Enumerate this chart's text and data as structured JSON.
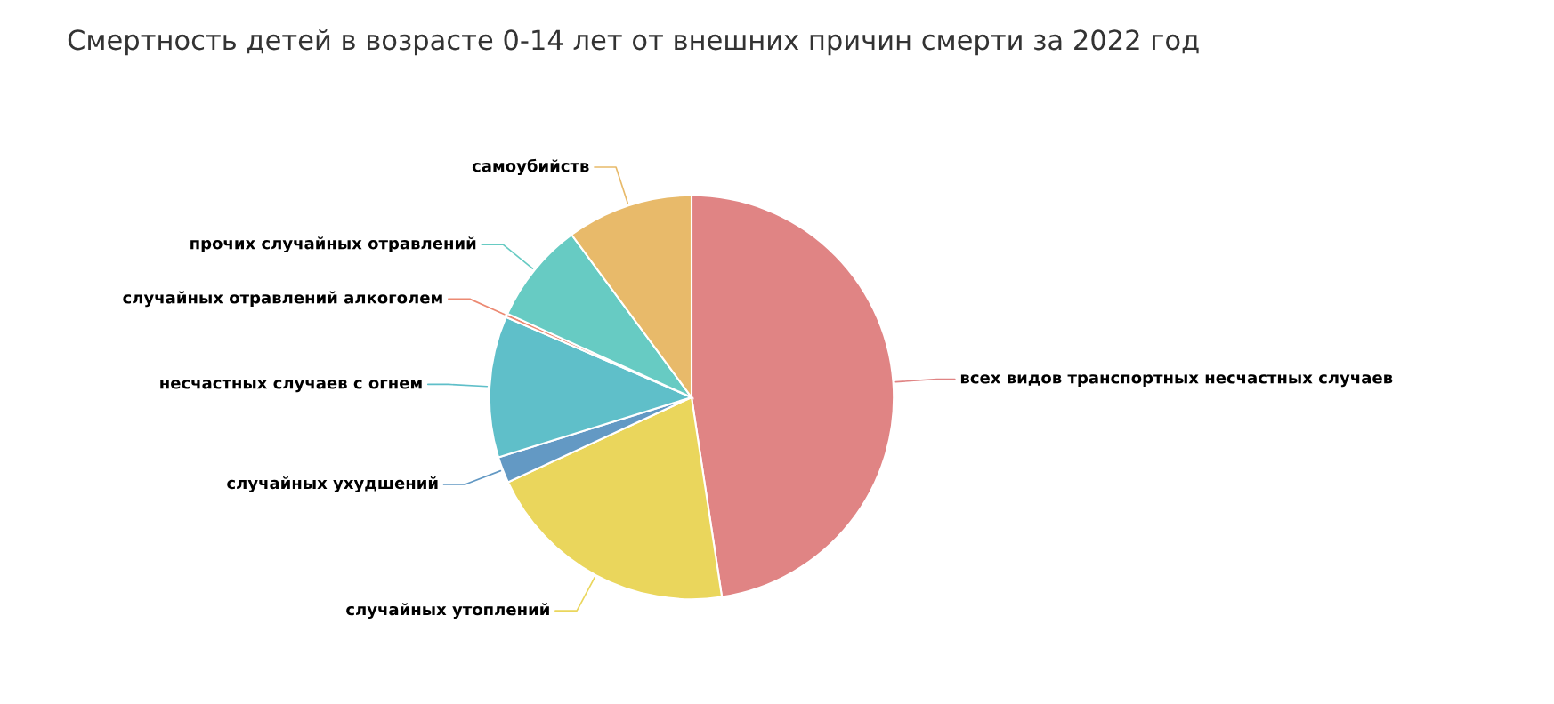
{
  "chart_data": {
    "type": "pie",
    "title": "Смертность детей в возрасте 0-14 лет от внешних причин смерти за 2022 год",
    "categories": [
      "всех видов транспортных несчастных случаев",
      "случайных утоплений",
      "случайных ухудшений",
      "несчастных случаев с огнем",
      "случайных отравлений алкоголем",
      "прочих случайных отравлений",
      "самоубийств"
    ],
    "values": [
      47.6,
      20.5,
      2.1,
      11.3,
      0.3,
      8.1,
      10.1
    ],
    "colors": [
      "#e08484",
      "#ead65c",
      "#6399c4",
      "#5fbfc9",
      "#ec8a73",
      "#67cbc3",
      "#e8ba6a"
    ],
    "legend": false
  }
}
